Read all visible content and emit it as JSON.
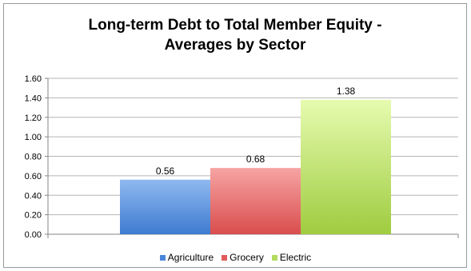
{
  "chart_data": {
    "type": "bar",
    "title_lines": [
      "Long-term Debt to Total Member Equity -",
      "Averages by Sector"
    ],
    "xlabel": "",
    "ylabel": "",
    "ylim": [
      0,
      1.6
    ],
    "yticks": [
      "0.00",
      "0.20",
      "0.40",
      "0.60",
      "0.80",
      "1.00",
      "1.20",
      "1.40",
      "1.60"
    ],
    "grid": true,
    "legend_position": "bottom",
    "series": [
      {
        "name": "Agriculture",
        "values": [
          0.56
        ],
        "label": "0.56",
        "color": "#4a86d8"
      },
      {
        "name": "Grocery",
        "values": [
          0.68
        ],
        "label": "0.68",
        "color": "#e25a5a"
      },
      {
        "name": "Electric",
        "values": [
          1.38
        ],
        "label": "1.38",
        "color": "#b3dc5e"
      }
    ]
  }
}
